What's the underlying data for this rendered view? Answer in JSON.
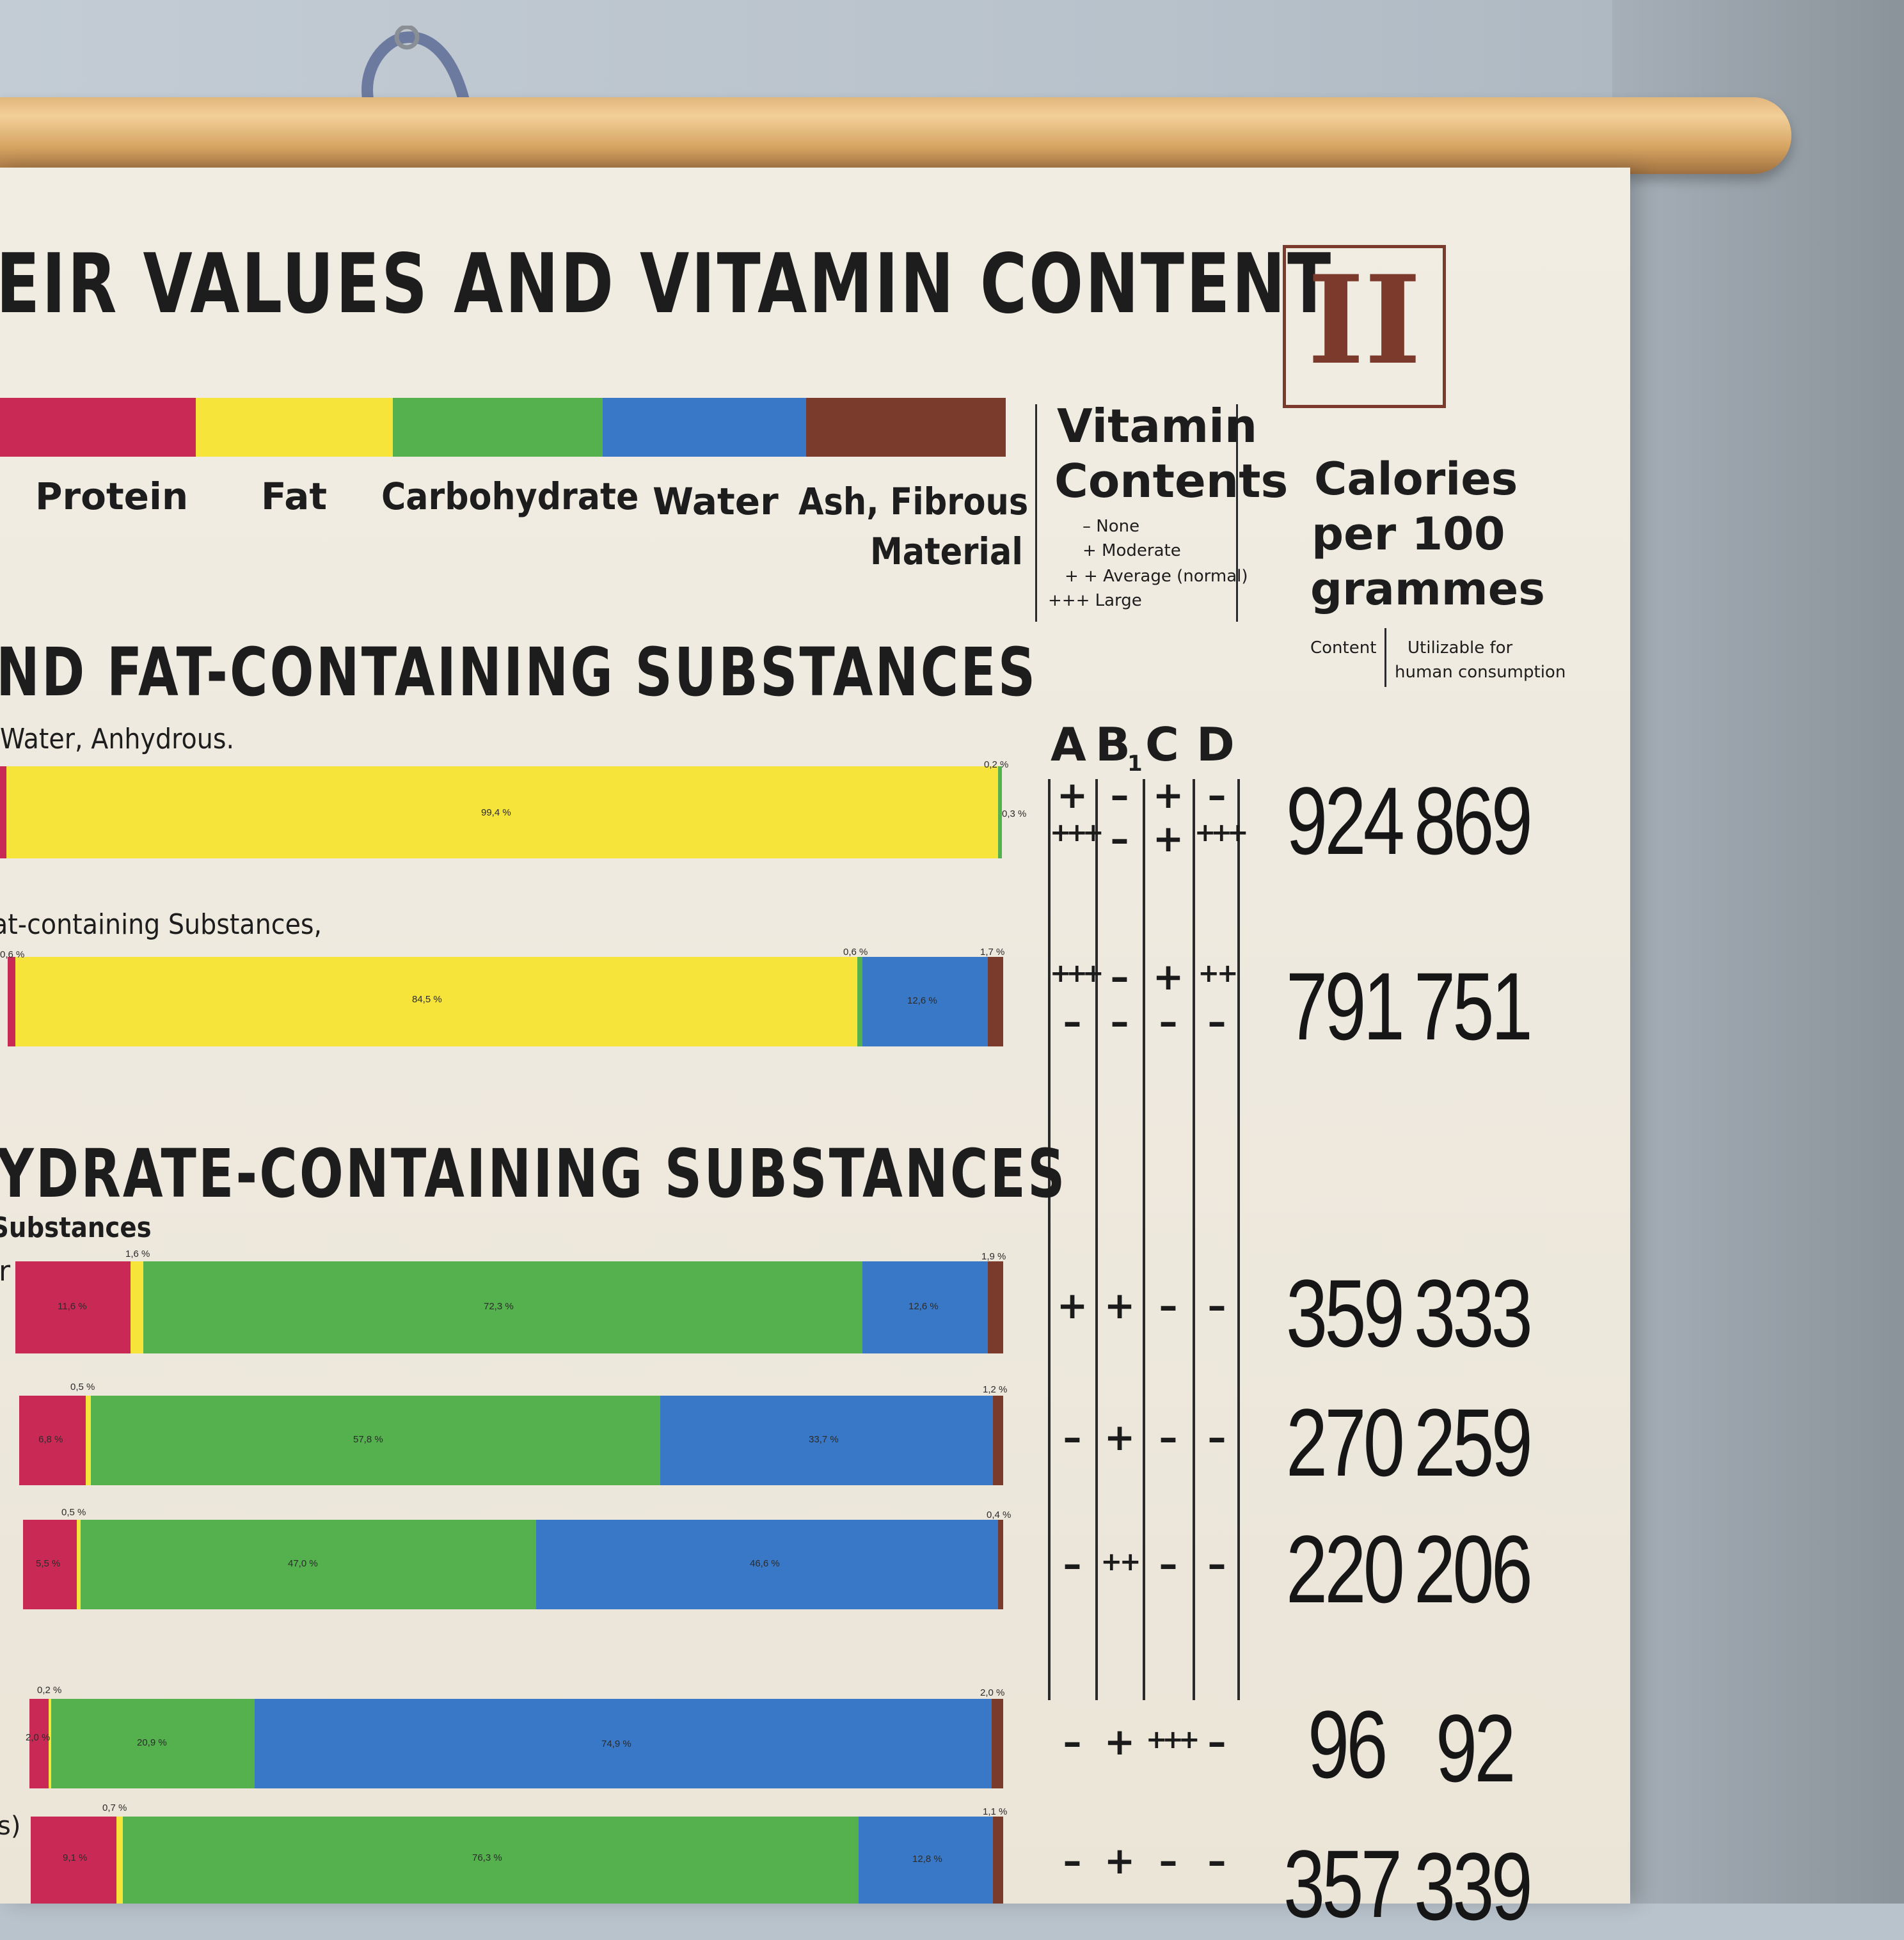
{
  "poster": {
    "title": "EIR VALUES AND VITAMIN CONTENT",
    "plate_numeral": "II",
    "legend": [
      {
        "label": "Protein",
        "color": "#c92a55"
      },
      {
        "label": "Fat",
        "color": "#f6e43a"
      },
      {
        "label": "Carbohydrate",
        "color": "#54b14e"
      },
      {
        "label": "Water",
        "color": "#3878c6"
      },
      {
        "label": "Ash, Fibrous",
        "label2": "Material",
        "color": "#7a3a2c"
      }
    ],
    "vitamin_header": {
      "title1": "Vitamin",
      "title2": "Contents",
      "key": [
        "– None",
        "+ Moderate",
        "+ + Average (normal)",
        "+++ Large"
      ]
    },
    "calorie_header": {
      "line1": "Calories",
      "line2": "per 100",
      "line3": "grammes",
      "col1": "Content",
      "col2a": "Utilizable for",
      "col2b": "human consumption"
    },
    "vitamin_letters": [
      "A",
      "B",
      "C",
      "D"
    ],
    "vitamin_b_sub": "1",
    "section1": {
      "heading": "ND FAT-CONTAINING SUBSTANCES",
      "label_a": "Water, Anhydrous.",
      "label_b": "at-containing Substances,"
    },
    "section2": {
      "heading": "YDRATE-CONTAINING SUBSTANCES",
      "label_a": "Substances",
      "frag_r": "r",
      "frag_s": "s)"
    },
    "rows": [
      {
        "protein": "",
        "fat_top": "0,2 %",
        "fat": "99,4 %",
        "carb_side": "0,3 %",
        "water": "",
        "ash_top": "",
        "vit": [
          "+",
          "–",
          "+",
          "–"
        ],
        "vit2": [
          "+++",
          "–",
          "+",
          "+++"
        ],
        "cal": "924",
        "cal_use": "869"
      },
      {
        "protein": "0,6 %",
        "fat_top": "0,6 %",
        "fat": "84,5 %",
        "water": "12,6 %",
        "ash_top": "1,7 %",
        "vit": [
          "+++",
          "–",
          "+",
          "++"
        ],
        "vit2": [
          "–",
          "–",
          "–",
          "–"
        ],
        "cal": "791",
        "cal_use": "751"
      },
      {
        "protein": "11,6 %",
        "fat_top": "1,6 %",
        "carb": "72,3 %",
        "water": "12,6 %",
        "ash_top": "1,9 %",
        "vit": [
          "+",
          "+",
          "–",
          "–"
        ],
        "cal": "359",
        "cal_use": "333"
      },
      {
        "protein": "6,8 %",
        "fat_top": "0,5 %",
        "carb": "57,8 %",
        "water": "33,7 %",
        "ash_top": "1,2 %",
        "vit": [
          "–",
          "+",
          "–",
          "–"
        ],
        "cal": "270",
        "cal_use": "259"
      },
      {
        "protein": "5,5 %",
        "fat_top": "0,5 %",
        "carb": "47,0 %",
        "water": "46,6 %",
        "ash_top": "0,4 %",
        "vit": [
          "–",
          "++",
          "–",
          "–"
        ],
        "cal": "220",
        "cal_use": "206"
      },
      {
        "protein": "2,0 %",
        "fat_top": "0,2 %",
        "carb": "20,9 %",
        "water": "74,9 %",
        "ash_top": "2,0 %",
        "vit": [
          "–",
          "+",
          "+++",
          "–"
        ],
        "cal": "96",
        "cal_use": "92"
      },
      {
        "protein": "9,1 %",
        "fat_top": "0,7 %",
        "carb": "76,3 %",
        "water": "12,8 %",
        "ash_top": "1,1 %",
        "vit": [
          "–",
          "+",
          "–",
          "–"
        ],
        "cal": "357",
        "cal_use": "339"
      }
    ]
  }
}
